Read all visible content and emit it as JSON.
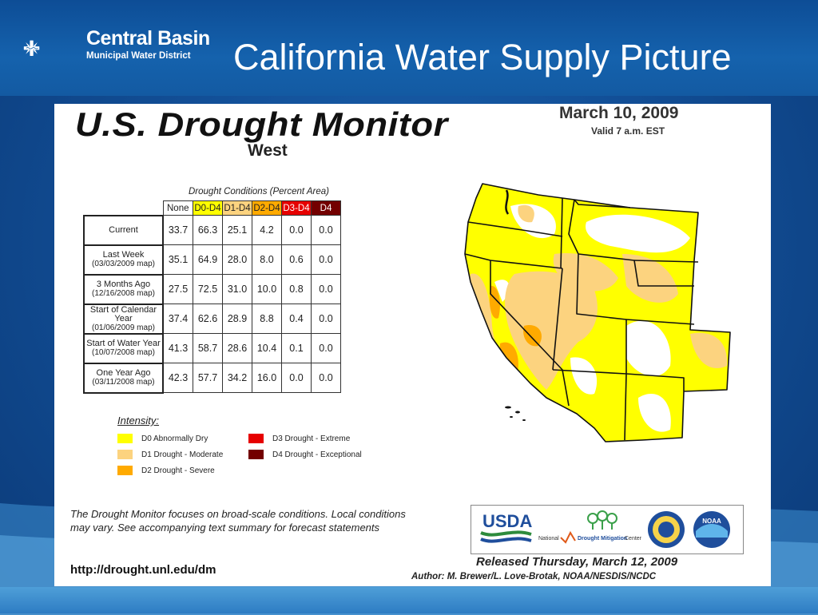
{
  "slide": {
    "title": "California Water Supply Picture",
    "logo_line1": "Central Basin",
    "logo_line2": "Municipal Water District"
  },
  "monitor": {
    "title": "U.S. Drought Monitor",
    "region": "West",
    "date": "March 10, 2009",
    "valid": "Valid 7 a.m. EST",
    "table_caption": "Drought Conditions (Percent Area)",
    "columns": [
      "None",
      "D0-D4",
      "D1-D4",
      "D2-D4",
      "D3-D4",
      "D4"
    ],
    "column_colors": [
      "#ffffff",
      "#ffff00",
      "#fcd37f",
      "#ffaa00",
      "#e60000",
      "#730000"
    ],
    "rows": [
      {
        "label1": "Current",
        "label2": "",
        "values": [
          "33.7",
          "66.3",
          "25.1",
          "4.2",
          "0.0",
          "0.0"
        ]
      },
      {
        "label1": "Last Week",
        "label2": "(03/03/2009 map)",
        "values": [
          "35.1",
          "64.9",
          "28.0",
          "8.0",
          "0.6",
          "0.0"
        ]
      },
      {
        "label1": "3 Months Ago",
        "label2": "(12/16/2008 map)",
        "values": [
          "27.5",
          "72.5",
          "31.0",
          "10.0",
          "0.8",
          "0.0"
        ]
      },
      {
        "label1": "Start of Calendar Year",
        "label2": "(01/06/2009 map)",
        "values": [
          "37.4",
          "62.6",
          "28.9",
          "8.8",
          "0.4",
          "0.0"
        ]
      },
      {
        "label1": "Start of Water Year",
        "label2": "(10/07/2008 map)",
        "values": [
          "41.3",
          "58.7",
          "28.6",
          "10.4",
          "0.1",
          "0.0"
        ]
      },
      {
        "label1": "One Year Ago",
        "label2": "(03/11/2008 map)",
        "values": [
          "42.3",
          "57.7",
          "34.2",
          "16.0",
          "0.0",
          "0.0"
        ]
      }
    ],
    "intensity_title": "Intensity:",
    "legend": [
      {
        "label": "D0 Abnormally Dry",
        "color": "#ffff00"
      },
      {
        "label": "D1 Drought - Moderate",
        "color": "#fcd37f"
      },
      {
        "label": "D2 Drought - Severe",
        "color": "#ffaa00"
      },
      {
        "label": "D3 Drought - Extreme",
        "color": "#e60000"
      },
      {
        "label": "D4 Drought - Exceptional",
        "color": "#730000"
      }
    ],
    "note": "The Drought Monitor focuses on broad-scale conditions. Local conditions may vary. See accompanying text summary for forecast statements",
    "url": "http://drought.unl.edu/dm",
    "logo_usda": "USDA",
    "logo_ndmc_a": "National",
    "logo_ndmc_b": "Drought Mitigation",
    "logo_ndmc_c": "Center",
    "logo_noaa": "NOAA",
    "released": "Released Thursday, March 12, 2009",
    "author": "Author: M. Brewer/L. Love-Brotak, NOAA/NESDIS/NCDC"
  }
}
